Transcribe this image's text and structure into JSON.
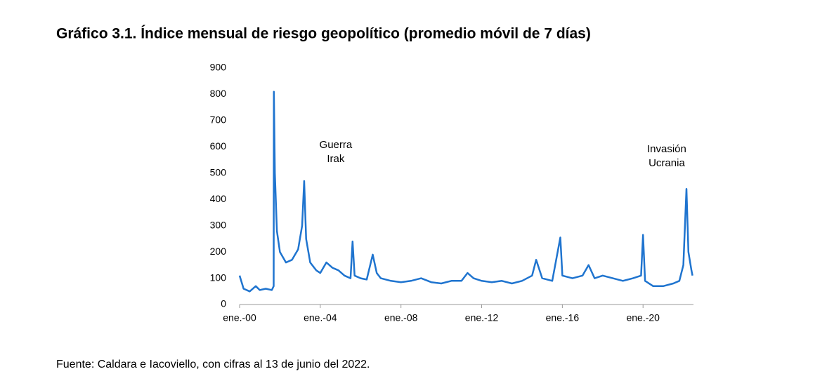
{
  "chart_data": {
    "type": "line",
    "title": "Gráfico 3.1. Índice mensual de riesgo geopolítico (promedio móvil de 7 días)",
    "source": "Fuente: Caldara e Iacoviello, con cifras al 13 de junio del 2022.",
    "annotations": [
      {
        "lines": [
          "Guerra",
          "Irak"
        ],
        "x": 2003.2
      },
      {
        "lines": [
          "Invasión",
          "Ucrania"
        ],
        "x": 2022.15
      }
    ],
    "series": [
      {
        "color": "#1f74cf",
        "x": [
          2000.0,
          2000.2,
          2000.5,
          2000.8,
          2001.0,
          2001.3,
          2001.6,
          2001.69,
          2001.7,
          2001.75,
          2001.85,
          2002.0,
          2002.3,
          2002.6,
          2002.9,
          2003.1,
          2003.2,
          2003.3,
          2003.5,
          2003.8,
          2004.0,
          2004.3,
          2004.6,
          2004.9,
          2005.2,
          2005.5,
          2005.6,
          2005.7,
          2006.0,
          2006.3,
          2006.6,
          2006.8,
          2007.0,
          2007.5,
          2008.0,
          2008.5,
          2009.0,
          2009.5,
          2010.0,
          2010.5,
          2011.0,
          2011.3,
          2011.6,
          2012.0,
          2012.5,
          2013.0,
          2013.5,
          2014.0,
          2014.5,
          2014.7,
          2015.0,
          2015.5,
          2015.9,
          2016.0,
          2016.5,
          2017.0,
          2017.3,
          2017.6,
          2018.0,
          2018.5,
          2019.0,
          2019.5,
          2019.9,
          2020.0,
          2020.1,
          2020.5,
          2021.0,
          2021.5,
          2021.8,
          2022.0,
          2022.15,
          2022.25,
          2022.4,
          2022.45
        ],
        "values": [
          110,
          60,
          50,
          70,
          55,
          60,
          55,
          70,
          810,
          500,
          280,
          200,
          160,
          170,
          210,
          300,
          470,
          250,
          160,
          130,
          120,
          160,
          140,
          130,
          110,
          100,
          240,
          110,
          100,
          95,
          190,
          120,
          100,
          90,
          85,
          90,
          100,
          85,
          80,
          90,
          90,
          120,
          100,
          90,
          85,
          90,
          80,
          90,
          110,
          170,
          100,
          90,
          255,
          110,
          100,
          110,
          150,
          100,
          110,
          100,
          90,
          100,
          110,
          265,
          90,
          70,
          70,
          80,
          90,
          150,
          440,
          200,
          130,
          110
        ]
      }
    ],
    "xlim": [
      2000,
      2022.5
    ],
    "xticks": [
      {
        "value": 2000,
        "label": "ene.-00"
      },
      {
        "value": 2004,
        "label": "ene.-04"
      },
      {
        "value": 2008,
        "label": "ene.-08"
      },
      {
        "value": 2012,
        "label": "ene.-12"
      },
      {
        "value": 2016,
        "label": "ene.-16"
      },
      {
        "value": 2020,
        "label": "ene.-20"
      }
    ],
    "ylim": [
      0,
      900
    ],
    "yticks": [
      0,
      100,
      200,
      300,
      400,
      500,
      600,
      700,
      800,
      900
    ]
  }
}
